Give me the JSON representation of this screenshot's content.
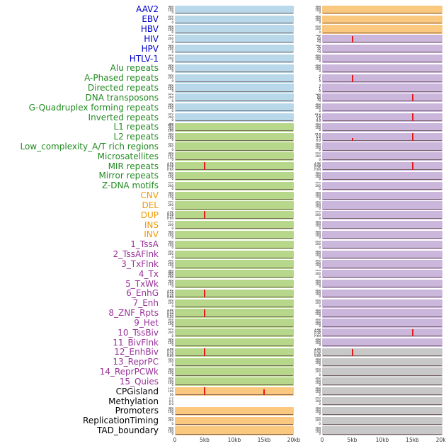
{
  "figure": {
    "kind": "genomic-feature-track-grid",
    "columns": 2
  },
  "chart_data": {
    "type": "line",
    "description": "Grid of 44 per-feature signal tracks over a 0-20kb window, two panel columns per row; flat near-zero traces with red peaks at 5kb or 15kb in some rows",
    "x_axis": {
      "ticks": [
        "0",
        "5kb",
        "10kb",
        "15kb",
        "20kb"
      ],
      "range_kb": [
        0,
        20
      ]
    },
    "spike_color": "#e31a1c",
    "label_colors": {
      "virus": "#0000cc",
      "repeat": "#228b22",
      "sv": "#f09800",
      "chromhmm": "#993399",
      "other": "#000000"
    },
    "panel_colors": {
      "blue": "#b9d8e9",
      "green": "#b7d78a",
      "orange": "#fbc87f",
      "purple": "#cbb6dc",
      "gray": "#c8c8c8"
    },
    "ticksets": {
      "c4": [
        "300",
        "200",
        "100",
        "0"
      ],
      "c3": [
        "400",
        "200",
        "0"
      ],
      "c5": [
        "500",
        "400",
        "300",
        "200",
        "100"
      ],
      "n5": [
        "1.00",
        "0.75",
        "0.50",
        "0.25",
        "0.00"
      ],
      "cpg": [
        "150",
        "100",
        "50"
      ],
      "d10": [
        "10.0",
        "7.5",
        "5.0",
        "2.5",
        "0.0"
      ],
      "s4": [
        "3",
        "2",
        "1",
        "0"
      ],
      "h5": [
        "100",
        "75",
        "50",
        "25",
        "0"
      ],
      "k5": [
        "120",
        "90",
        "60",
        "30",
        "0"
      ],
      "meth": [
        "1.0",
        "0.5",
        "0.0"
      ]
    },
    "rows": [
      {
        "label": "AAV2",
        "group": "virus",
        "l": {
          "bg": "blue",
          "yt": "c4",
          "sp": []
        },
        "r": {
          "bg": "orange",
          "yt": "c4",
          "sp": []
        }
      },
      {
        "label": "EBV",
        "group": "virus",
        "l": {
          "bg": "blue",
          "yt": "c3",
          "sp": []
        },
        "r": {
          "bg": "orange",
          "yt": "c4",
          "sp": []
        }
      },
      {
        "label": "HBV",
        "group": "virus",
        "l": {
          "bg": "blue",
          "yt": "c4",
          "sp": []
        },
        "r": {
          "bg": "orange",
          "yt": "c3",
          "sp": []
        }
      },
      {
        "label": "HIV",
        "group": "virus",
        "l": {
          "bg": "blue",
          "yt": "c3",
          "sp": []
        },
        "r": {
          "bg": "purple",
          "yt": "h5",
          "sp": [
            {
              "x": 5,
              "h": 0.8
            }
          ]
        }
      },
      {
        "label": "HPV",
        "group": "virus",
        "l": {
          "bg": "blue",
          "yt": "c4",
          "sp": []
        },
        "r": {
          "bg": "purple",
          "yt": "h5",
          "sp": []
        }
      },
      {
        "label": "HTLV-1",
        "group": "virus",
        "l": {
          "bg": "blue",
          "yt": "c3",
          "sp": []
        },
        "r": {
          "bg": "purple",
          "yt": "c4",
          "sp": []
        }
      },
      {
        "label": "Alu repeats",
        "group": "repeat",
        "l": {
          "bg": "blue",
          "yt": "c4",
          "sp": []
        },
        "r": {
          "bg": "purple",
          "yt": "c4",
          "sp": []
        }
      },
      {
        "label": "A-Phased repeats",
        "group": "repeat",
        "l": {
          "bg": "blue",
          "yt": "c3",
          "sp": []
        },
        "r": {
          "bg": "purple",
          "yt": "s4",
          "sp": [
            {
              "x": 5,
              "h": 0.8
            }
          ]
        }
      },
      {
        "label": "Directed repeats",
        "group": "repeat",
        "l": {
          "bg": "blue",
          "yt": "c4",
          "sp": []
        },
        "r": {
          "bg": "purple",
          "yt": "s4",
          "sp": []
        }
      },
      {
        "label": "DNA transposons",
        "group": "repeat",
        "l": {
          "bg": "blue",
          "yt": "c3",
          "sp": []
        },
        "r": {
          "bg": "purple",
          "yt": "k5",
          "sp": [
            {
              "x": 15,
              "h": 0.85
            }
          ]
        }
      },
      {
        "label": "G-Quadruplex forming repeats",
        "group": "repeat",
        "l": {
          "bg": "blue",
          "yt": "c4",
          "sp": []
        },
        "r": {
          "bg": "purple",
          "yt": "c4",
          "sp": []
        }
      },
      {
        "label": "Inverted repeats",
        "group": "repeat",
        "l": {
          "bg": "blue",
          "yt": "c3",
          "sp": []
        },
        "r": {
          "bg": "purple",
          "yt": "d10",
          "sp": [
            {
              "x": 15,
              "h": 0.95
            }
          ]
        }
      },
      {
        "label": "L1 repeats",
        "group": "repeat",
        "l": {
          "bg": "green",
          "yt": "c5",
          "sp": []
        },
        "r": {
          "bg": "purple",
          "yt": "c4",
          "sp": []
        }
      },
      {
        "label": "L2 repeats",
        "group": "repeat",
        "l": {
          "bg": "green",
          "yt": "c4",
          "sp": []
        },
        "r": {
          "bg": "purple",
          "yt": "d10",
          "sp": [
            {
              "x": 5,
              "h": 0.3
            },
            {
              "x": 15,
              "h": 0.9
            }
          ]
        }
      },
      {
        "label": "Low_complexity_A/T rich regions",
        "group": "repeat",
        "l": {
          "bg": "green",
          "yt": "c3",
          "sp": []
        },
        "r": {
          "bg": "purple",
          "yt": "c4",
          "sp": []
        }
      },
      {
        "label": "Microsatellites",
        "group": "repeat",
        "l": {
          "bg": "green",
          "yt": "c4",
          "sp": []
        },
        "r": {
          "bg": "purple",
          "yt": "c3",
          "sp": []
        }
      },
      {
        "label": "MIR repeats",
        "group": "repeat",
        "l": {
          "bg": "green",
          "yt": "n5",
          "sp": [
            {
              "x": 5,
              "h": 0.95
            }
          ]
        },
        "r": {
          "bg": "purple",
          "yt": "n5",
          "sp": [
            {
              "x": 15,
              "h": 0.95
            }
          ]
        }
      },
      {
        "label": "Mirror repeats",
        "group": "repeat",
        "l": {
          "bg": "green",
          "yt": "c4",
          "sp": []
        },
        "r": {
          "bg": "purple",
          "yt": "c4",
          "sp": []
        }
      },
      {
        "label": "Z-DNA motifs",
        "group": "repeat",
        "l": {
          "bg": "green",
          "yt": "c3",
          "sp": []
        },
        "r": {
          "bg": "purple",
          "yt": "c3",
          "sp": []
        }
      },
      {
        "label": "CNV",
        "group": "sv",
        "l": {
          "bg": "green",
          "yt": "c4",
          "sp": []
        },
        "r": {
          "bg": "purple",
          "yt": "c4",
          "sp": []
        }
      },
      {
        "label": "DEL",
        "group": "sv",
        "l": {
          "bg": "green",
          "yt": "c3",
          "sp": []
        },
        "r": {
          "bg": "purple",
          "yt": "c4",
          "sp": []
        }
      },
      {
        "label": "DUP",
        "group": "sv",
        "l": {
          "bg": "green",
          "yt": "n5",
          "sp": [
            {
              "x": 5,
              "h": 0.95
            }
          ]
        },
        "r": {
          "bg": "purple",
          "yt": "c3",
          "sp": []
        }
      },
      {
        "label": "INS",
        "group": "sv",
        "l": {
          "bg": "green",
          "yt": "c3",
          "sp": []
        },
        "r": {
          "bg": "purple",
          "yt": "c4",
          "sp": []
        }
      },
      {
        "label": "INV",
        "group": "sv",
        "l": {
          "bg": "green",
          "yt": "c4",
          "sp": []
        },
        "r": {
          "bg": "purple",
          "yt": "c4",
          "sp": []
        }
      },
      {
        "label": "1_TssA",
        "group": "chromhmm",
        "l": {
          "bg": "green",
          "yt": "c4",
          "sp": []
        },
        "r": {
          "bg": "purple",
          "yt": "c3",
          "sp": []
        }
      },
      {
        "label": "2_TssAFlnk",
        "group": "chromhmm",
        "l": {
          "bg": "green",
          "yt": "c3",
          "sp": []
        },
        "r": {
          "bg": "purple",
          "yt": "c4",
          "sp": []
        }
      },
      {
        "label": "3_TxFlnk",
        "group": "chromhmm",
        "l": {
          "bg": "green",
          "yt": "c4",
          "sp": []
        },
        "r": {
          "bg": "purple",
          "yt": "c4",
          "sp": []
        }
      },
      {
        "label": "4_Tx",
        "group": "chromhmm",
        "l": {
          "bg": "green",
          "yt": "c5",
          "sp": []
        },
        "r": {
          "bg": "purple",
          "yt": "c3",
          "sp": []
        }
      },
      {
        "label": "5_TxWk",
        "group": "chromhmm",
        "l": {
          "bg": "green",
          "yt": "c4",
          "sp": []
        },
        "r": {
          "bg": "purple",
          "yt": "c4",
          "sp": []
        }
      },
      {
        "label": "6_EnhG",
        "group": "chromhmm",
        "l": {
          "bg": "green",
          "yt": "n5",
          "sp": [
            {
              "x": 5,
              "h": 0.9
            }
          ]
        },
        "r": {
          "bg": "purple",
          "yt": "c4",
          "sp": []
        }
      },
      {
        "label": "7_Enh",
        "group": "chromhmm",
        "l": {
          "bg": "green",
          "yt": "c3",
          "sp": []
        },
        "r": {
          "bg": "purple",
          "yt": "c3",
          "sp": []
        }
      },
      {
        "label": "8_ZNF_Rpts",
        "group": "chromhmm",
        "l": {
          "bg": "green",
          "yt": "n5",
          "sp": [
            {
              "x": 5,
              "h": 0.9
            }
          ]
        },
        "r": {
          "bg": "purple",
          "yt": "c4",
          "sp": []
        }
      },
      {
        "label": "9_Het",
        "group": "chromhmm",
        "l": {
          "bg": "green",
          "yt": "c4",
          "sp": []
        },
        "r": {
          "bg": "purple",
          "yt": "c4",
          "sp": []
        }
      },
      {
        "label": "10_TssBiv",
        "group": "chromhmm",
        "l": {
          "bg": "green",
          "yt": "c3",
          "sp": []
        },
        "r": {
          "bg": "purple",
          "yt": "n5",
          "sp": [
            {
              "x": 15,
              "h": 0.85
            }
          ]
        }
      },
      {
        "label": "11_BivFlnk",
        "group": "chromhmm",
        "l": {
          "bg": "green",
          "yt": "c4",
          "sp": []
        },
        "r": {
          "bg": "purple",
          "yt": "c4",
          "sp": []
        }
      },
      {
        "label": "12_EnhBiv",
        "group": "chromhmm",
        "l": {
          "bg": "green",
          "yt": "n5",
          "sp": [
            {
              "x": 5,
              "h": 0.9
            }
          ]
        },
        "r": {
          "bg": "gray",
          "yt": "n5",
          "sp": [
            {
              "x": 5,
              "h": 0.85
            }
          ]
        }
      },
      {
        "label": "13_ReprPC",
        "group": "chromhmm",
        "l": {
          "bg": "green",
          "yt": "c3",
          "sp": []
        },
        "r": {
          "bg": "gray",
          "yt": "c4",
          "sp": []
        }
      },
      {
        "label": "14_ReprPCWk",
        "group": "chromhmm",
        "l": {
          "bg": "green",
          "yt": "c4",
          "sp": []
        },
        "r": {
          "bg": "gray",
          "yt": "c3",
          "sp": []
        }
      },
      {
        "label": "15_Quies",
        "group": "chromhmm",
        "l": {
          "bg": "green",
          "yt": "c4",
          "sp": []
        },
        "r": {
          "bg": "gray",
          "yt": "c4",
          "sp": []
        }
      },
      {
        "label": "CPGisland",
        "group": "other",
        "l": {
          "bg": "orange",
          "yt": "cpg",
          "sp": [
            {
              "x": 5,
              "h": 1.0
            },
            {
              "x": 15,
              "h": 0.65
            }
          ]
        },
        "r": {
          "bg": "gray",
          "yt": "c4",
          "sp": []
        }
      },
      {
        "label": "Methylation",
        "group": "other",
        "l": {
          "bg": null,
          "yt": "meth",
          "sp": []
        },
        "r": {
          "bg": "gray",
          "yt": "c3",
          "sp": []
        }
      },
      {
        "label": "Promoters",
        "group": "other",
        "l": {
          "bg": "orange",
          "yt": "c4",
          "sp": []
        },
        "r": {
          "bg": "gray",
          "yt": "c4",
          "sp": []
        }
      },
      {
        "label": "ReplicationTiming",
        "group": "other",
        "l": {
          "bg": "orange",
          "yt": "c3",
          "sp": []
        },
        "r": {
          "bg": "gray",
          "yt": "c3",
          "sp": []
        }
      },
      {
        "label": "TAD_boundary",
        "group": "other",
        "l": {
          "bg": "orange",
          "yt": "c4",
          "sp": []
        },
        "r": {
          "bg": "gray",
          "yt": "c4",
          "sp": []
        }
      }
    ]
  }
}
